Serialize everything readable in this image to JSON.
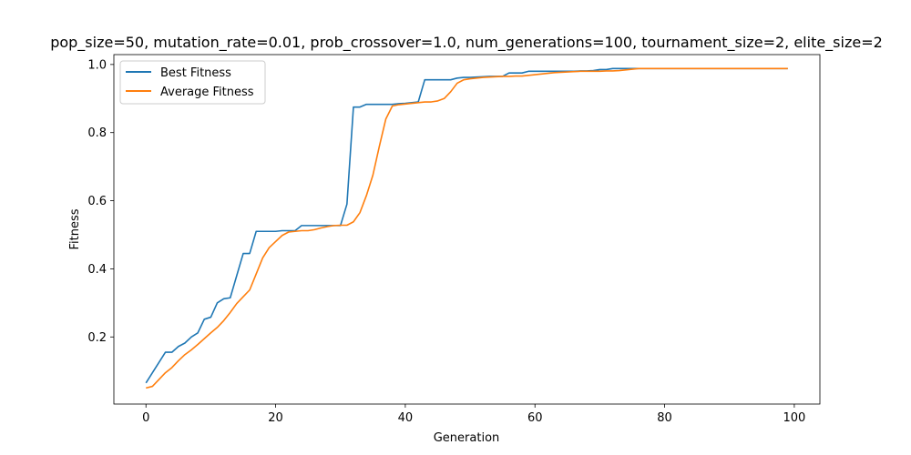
{
  "chart_data": {
    "type": "line",
    "title": "pop_size=50, mutation_rate=0.01, prob_crossover=1.0, num_generations=100, tournament_size=2, elite_size=2",
    "xlabel": "Generation",
    "ylabel": "Fitness",
    "xlim": [
      -4.95,
      103.95
    ],
    "ylim": [
      0.003,
      1.029
    ],
    "xticks": [
      0,
      20,
      40,
      60,
      80,
      100
    ],
    "yticks": [
      0.2,
      0.4,
      0.6,
      0.8,
      1.0
    ],
    "xtick_labels": [
      "0",
      "20",
      "40",
      "60",
      "80",
      "100"
    ],
    "ytick_labels": [
      "0.2",
      "0.4",
      "0.6",
      "0.8",
      "1.0"
    ],
    "grid": false,
    "legend_position": "upper-left",
    "x": [
      0,
      1,
      2,
      3,
      4,
      5,
      6,
      7,
      8,
      9,
      10,
      11,
      12,
      13,
      14,
      15,
      16,
      17,
      18,
      19,
      20,
      21,
      22,
      23,
      24,
      25,
      26,
      27,
      28,
      29,
      30,
      31,
      32,
      33,
      34,
      35,
      36,
      37,
      38,
      39,
      40,
      41,
      42,
      43,
      44,
      45,
      46,
      47,
      48,
      49,
      50,
      51,
      52,
      53,
      54,
      55,
      56,
      57,
      58,
      59,
      60,
      61,
      62,
      63,
      64,
      65,
      66,
      67,
      68,
      69,
      70,
      71,
      72,
      73,
      74,
      75,
      76,
      77,
      78,
      79,
      80,
      81,
      82,
      83,
      84,
      85,
      86,
      87,
      88,
      89,
      90,
      91,
      92,
      93,
      94,
      95,
      96,
      97,
      98,
      99
    ],
    "series": [
      {
        "name": "Best Fitness",
        "color": "#1f77b4",
        "values": [
          0.065,
          0.095,
          0.125,
          0.155,
          0.155,
          0.172,
          0.182,
          0.2,
          0.212,
          0.252,
          0.258,
          0.3,
          0.312,
          0.315,
          0.38,
          0.445,
          0.445,
          0.51,
          0.51,
          0.51,
          0.51,
          0.512,
          0.512,
          0.512,
          0.527,
          0.527,
          0.527,
          0.527,
          0.527,
          0.527,
          0.527,
          0.59,
          0.875,
          0.875,
          0.883,
          0.883,
          0.883,
          0.883,
          0.883,
          0.885,
          0.886,
          0.888,
          0.89,
          0.955,
          0.955,
          0.955,
          0.955,
          0.955,
          0.96,
          0.962,
          0.962,
          0.963,
          0.964,
          0.965,
          0.965,
          0.965,
          0.975,
          0.975,
          0.975,
          0.98,
          0.98,
          0.98,
          0.98,
          0.98,
          0.98,
          0.98,
          0.98,
          0.981,
          0.981,
          0.982,
          0.985,
          0.985,
          0.988,
          0.988,
          0.988,
          0.988,
          0.988,
          0.988,
          0.988,
          0.988,
          0.988,
          0.988,
          0.988,
          0.988,
          0.988,
          0.988,
          0.988,
          0.988,
          0.988,
          0.988,
          0.988,
          0.988,
          0.988,
          0.988,
          0.988,
          0.988,
          0.988,
          0.988,
          0.988,
          0.988
        ]
      },
      {
        "name": "Average Fitness",
        "color": "#ff7f0e",
        "values": [
          0.05,
          0.055,
          0.075,
          0.095,
          0.11,
          0.13,
          0.148,
          0.162,
          0.178,
          0.195,
          0.212,
          0.228,
          0.248,
          0.272,
          0.298,
          0.318,
          0.338,
          0.385,
          0.432,
          0.462,
          0.48,
          0.498,
          0.508,
          0.51,
          0.512,
          0.512,
          0.515,
          0.52,
          0.524,
          0.527,
          0.528,
          0.528,
          0.538,
          0.565,
          0.615,
          0.675,
          0.76,
          0.84,
          0.878,
          0.882,
          0.884,
          0.886,
          0.888,
          0.89,
          0.89,
          0.893,
          0.9,
          0.92,
          0.945,
          0.955,
          0.958,
          0.96,
          0.962,
          0.963,
          0.964,
          0.965,
          0.965,
          0.966,
          0.966,
          0.968,
          0.97,
          0.972,
          0.974,
          0.976,
          0.977,
          0.978,
          0.979,
          0.98,
          0.98,
          0.98,
          0.98,
          0.981,
          0.981,
          0.982,
          0.984,
          0.986,
          0.988,
          0.988,
          0.988,
          0.988,
          0.988,
          0.988,
          0.988,
          0.988,
          0.988,
          0.988,
          0.988,
          0.988,
          0.988,
          0.988,
          0.988,
          0.988,
          0.988,
          0.988,
          0.988,
          0.988,
          0.988,
          0.988,
          0.988,
          0.988
        ]
      }
    ]
  }
}
